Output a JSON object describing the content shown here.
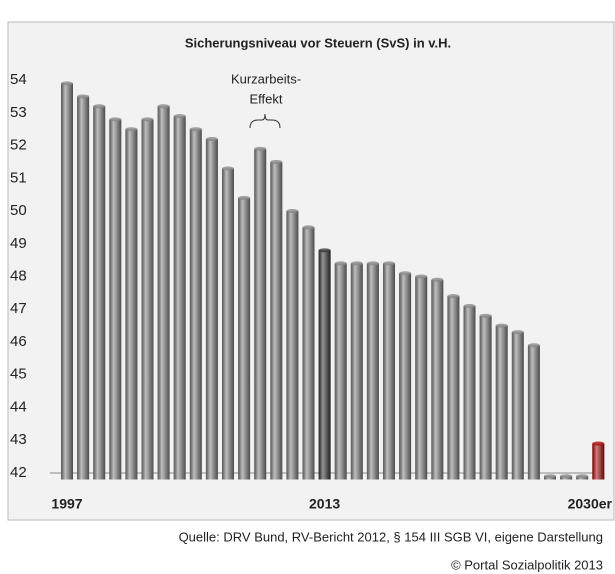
{
  "chart_data": {
    "type": "bar",
    "title": "Sicherungsniveau vor Steuern (SvS) in v.H.",
    "annotation": [
      "Kurzarbeits-",
      "Effekt"
    ],
    "categories": [
      "1997",
      null,
      null,
      null,
      null,
      null,
      null,
      null,
      null,
      null,
      null,
      null,
      null,
      null,
      null,
      null,
      "2013",
      null,
      null,
      null,
      null,
      null,
      null,
      null,
      null,
      null,
      null,
      null,
      null,
      null,
      null,
      null,
      null,
      "2030er"
    ],
    "values": [
      53.9,
      53.5,
      53.2,
      52.8,
      52.5,
      52.8,
      53.2,
      52.9,
      52.5,
      52.2,
      51.3,
      50.4,
      51.9,
      51.5,
      50.0,
      49.5,
      48.8,
      48.4,
      48.4,
      48.4,
      48.4,
      48.1,
      48.0,
      47.9,
      47.4,
      47.1,
      46.8,
      46.5,
      46.3,
      45.9,
      41.9,
      41.9,
      41.9,
      42.9
    ],
    "colors": [
      "#8a8a8a",
      "#8a8a8a",
      "#8a8a8a",
      "#8a8a8a",
      "#8a8a8a",
      "#8a8a8a",
      "#8a8a8a",
      "#8a8a8a",
      "#8a8a8a",
      "#8a8a8a",
      "#8a8a8a",
      "#8a8a8a",
      "#8a8a8a",
      "#8a8a8a",
      "#8a8a8a",
      "#8a8a8a",
      "#3a3a3a",
      "#8a8a8a",
      "#8a8a8a",
      "#8a8a8a",
      "#8a8a8a",
      "#8a8a8a",
      "#8a8a8a",
      "#8a8a8a",
      "#8a8a8a",
      "#8a8a8a",
      "#8a8a8a",
      "#8a8a8a",
      "#8a8a8a",
      "#8a8a8a",
      "#8a8a8a",
      "#8a8a8a",
      "#8a8a8a",
      "#b01010"
    ],
    "ylim": [
      41.8,
      54.4
    ],
    "yticks": [
      42,
      43,
      44,
      45,
      46,
      47,
      48,
      49,
      50,
      51,
      52,
      53,
      54
    ],
    "source": "Quelle: DRV Bund, RV-Bericht 2012, § 154 III SGB VI, eigene Darstellung",
    "copyright": "© Portal Sozialpolitik 2013"
  }
}
